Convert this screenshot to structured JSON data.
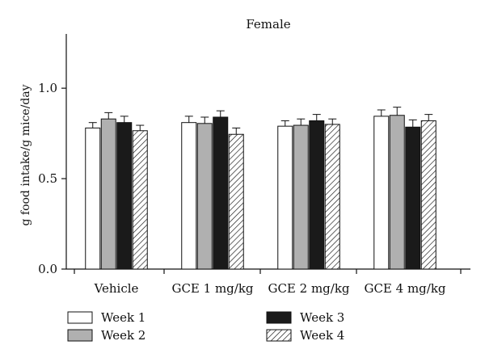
{
  "chart_data": {
    "type": "bar",
    "title": "Female",
    "xlabel": "",
    "ylabel": "g food intake/g mice/day",
    "ylim": [
      0,
      1.3
    ],
    "yticks": [
      {
        "value": 0.0,
        "label": "0.0"
      },
      {
        "value": 0.5,
        "label": "0.5"
      },
      {
        "value": 1.0,
        "label": "1.0"
      }
    ],
    "categories": [
      "Vehicle",
      "GCE 1 mg/kg",
      "GCE 2 mg/kg",
      "GCE 4 mg/kg"
    ],
    "series": [
      {
        "name": "Week 1",
        "fill": "#ffffff",
        "pattern": "none",
        "values": [
          0.78,
          0.81,
          0.79,
          0.845
        ],
        "errors": [
          0.03,
          0.035,
          0.03,
          0.035
        ]
      },
      {
        "name": "Week 2",
        "fill": "#b0b0b0",
        "pattern": "none",
        "values": [
          0.83,
          0.805,
          0.795,
          0.85
        ],
        "errors": [
          0.035,
          0.035,
          0.035,
          0.045
        ]
      },
      {
        "name": "Week 3",
        "fill": "#1a1a1a",
        "pattern": "none",
        "values": [
          0.81,
          0.84,
          0.82,
          0.785
        ],
        "errors": [
          0.035,
          0.035,
          0.035,
          0.04
        ]
      },
      {
        "name": "Week 4",
        "fill": "#ffffff",
        "pattern": "hatch",
        "values": [
          0.765,
          0.745,
          0.8,
          0.82
        ],
        "errors": [
          0.03,
          0.035,
          0.03,
          0.035
        ]
      }
    ],
    "legend_position": "bottom",
    "grid": false
  }
}
